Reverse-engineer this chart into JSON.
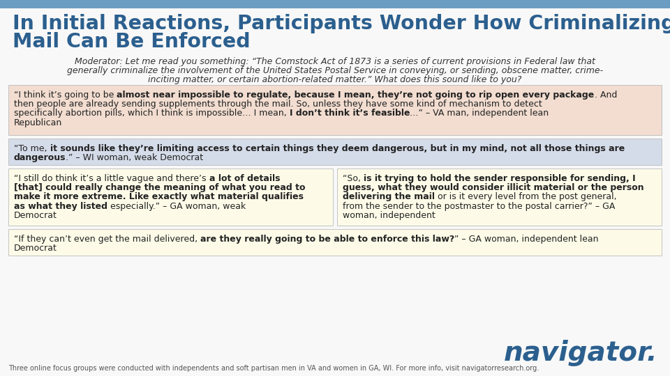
{
  "title_line1": "In Initial Reactions, Participants Wonder How Criminalizing",
  "title_line2": "Mail Can Be Enforced",
  "title_color": "#2B5F8E",
  "header_bar_color": "#6B9DC2",
  "background_color": "#F8F8F8",
  "moderator_line1": "Moderator: Let me read you something: “The Comstock Act of 1873 is a series of current provisions in Federal law that",
  "moderator_line2": "generally criminalize the involvement of the United States Postal Service in conveying, or sending, obscene matter, crime-",
  "moderator_line3": "inciting matter, or certain abortion-related matter.” What does this sound like to you?",
  "q1_bg": "#F2DDD0",
  "q1_lines": [
    [
      [
        "normal",
        "“I think it’s going to be "
      ],
      [
        "bold",
        "almost near impossible to regulate, because I mean, they’re not going to rip open every package"
      ],
      [
        "normal",
        ". And"
      ]
    ],
    [
      [
        "normal",
        "then people are already sending supplements through the mail. So, unless they have some kind of mechanism to detect"
      ]
    ],
    [
      [
        "normal",
        "specifically abortion pills, which I think is impossible… I mean, "
      ],
      [
        "bold",
        "I don’t think it’s feasible"
      ],
      [
        "normal",
        "…” – VA man, independent lean"
      ]
    ],
    [
      [
        "normal",
        "Republican"
      ]
    ]
  ],
  "q2_bg": "#D5DCE9",
  "q2_lines": [
    [
      [
        "normal",
        "“To me, "
      ],
      [
        "bold",
        "it sounds like they’re limiting access to certain things they deem dangerous, but in my mind, not all those things are"
      ]
    ],
    [
      [
        "bold",
        "dangerous"
      ],
      [
        "normal",
        ".” – WI woman, weak Democrat"
      ]
    ]
  ],
  "q3_bg": "#FDFBE8",
  "q3_lines": [
    [
      [
        "normal",
        "“I still do think it’s a little vague and there’s "
      ],
      [
        "bold",
        "a lot of details"
      ]
    ],
    [
      [
        "bold",
        "[that] could really change the meaning of what you read to"
      ]
    ],
    [
      [
        "bold",
        "make it more extreme. Like exactly what material qualifies"
      ]
    ],
    [
      [
        "bold",
        "as what they listed"
      ],
      [
        "normal",
        " especially.” – GA woman, weak"
      ]
    ],
    [
      [
        "normal",
        "Democrat"
      ]
    ]
  ],
  "q4_bg": "#FDFBE8",
  "q4_lines": [
    [
      [
        "normal",
        "“So, "
      ],
      [
        "bold",
        "is it trying to hold the sender responsible for sending, I"
      ]
    ],
    [
      [
        "bold",
        "guess, what they would consider illicit material or the person"
      ]
    ],
    [
      [
        "bold",
        "delivering the mail"
      ],
      [
        "normal",
        " or is it every level from the post general,"
      ]
    ],
    [
      [
        "normal",
        "from the sender to the postmaster to the postal carrier?” – GA"
      ]
    ],
    [
      [
        "normal",
        "woman, independent"
      ]
    ]
  ],
  "q5_bg": "#FDFBE8",
  "q5_lines": [
    [
      [
        "normal",
        "“If they can’t even get the mail delivered, "
      ],
      [
        "bold",
        "are they really going to be able to enforce this law?"
      ],
      [
        "normal",
        "” – GA woman, independent lean"
      ]
    ],
    [
      [
        "normal",
        "Democrat"
      ]
    ]
  ],
  "footer_text": "Three online focus groups were conducted with independents and soft partisan men in VA and women in GA, WI. For more info, visit navigatorresearch.org.",
  "navigator_color": "#2B5F8E",
  "link_color": "#2B6CB0"
}
